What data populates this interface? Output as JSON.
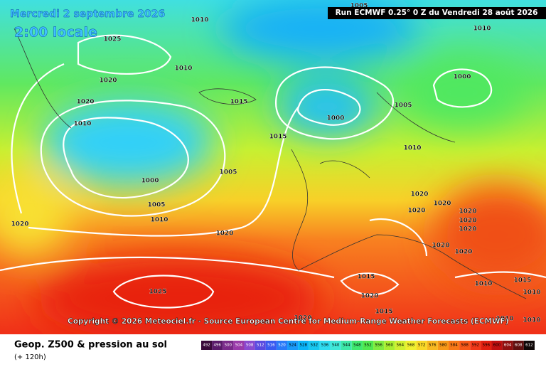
{
  "header": {
    "date": "Mercredi 2 septembre 2026",
    "local_time": "2:00 locale",
    "run": "Run ECMWF 0.25° 0 Z du Vendredi 28 août 2026"
  },
  "copyright": "Copyright © 2026 Meteociel.fr - Source European Centre for Medium-Range Weather Forecasts (ECMWF)",
  "isobar_labels": [
    "1005",
    "1010",
    "1010",
    "1025",
    "1010",
    "1020",
    "1000",
    "1015",
    "1020",
    "1005",
    "1000",
    "1010",
    "1015",
    "1010",
    "1005",
    "1000",
    "1020",
    "1005",
    "1020",
    "1020",
    "1020",
    "1020",
    "1010",
    "1020",
    "1020",
    "1020",
    "1020",
    "1015",
    "1015",
    "1010",
    "1010",
    "1025",
    "1020",
    "1015",
    "1020",
    "1010",
    "1010",
    "1020"
  ],
  "footer": {
    "title": "Geop. Z500 & pression au sol",
    "lead": "(+ 120h)"
  },
  "legend": {
    "scale": [
      492,
      496,
      500,
      504,
      508,
      512,
      516,
      520,
      524,
      528,
      532,
      536,
      540,
      544,
      548,
      552,
      556,
      560,
      564,
      568,
      572,
      576,
      580,
      584,
      588,
      592,
      596,
      600,
      604,
      608,
      612
    ],
    "colors": [
      "#3a0a3a",
      "#5a1a6a",
      "#7a2a8a",
      "#9a3aaa",
      "#8a4ad0",
      "#5a4ae0",
      "#3a5af0",
      "#2a7af8",
      "#1a9afa",
      "#0ab4f8",
      "#18c8f0",
      "#30dcf0",
      "#40e8d8",
      "#3ee8a8",
      "#40e870",
      "#50e850",
      "#80ec40",
      "#a8ee30",
      "#d0f030",
      "#f0f030",
      "#f8d828",
      "#f8b820",
      "#f89818",
      "#f87818",
      "#f85818",
      "#f03818",
      "#e02010",
      "#c01010",
      "#901010",
      "#601010",
      "#100808"
    ]
  }
}
